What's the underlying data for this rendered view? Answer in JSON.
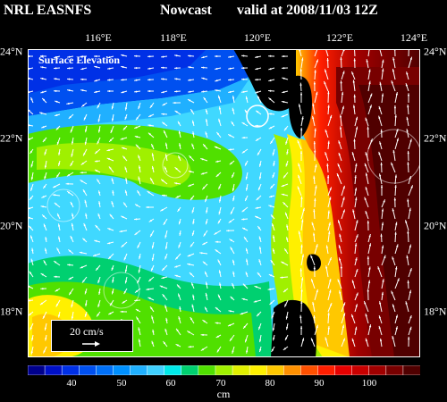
{
  "header": {
    "source": "NRL EASNFS",
    "product": "Nowcast",
    "valid": "valid at 2008/11/03 12Z"
  },
  "map": {
    "field_label": "Surface Elevation",
    "lon_ticks": [
      "116°E",
      "118°E",
      "120°E",
      "122°E",
      "124°E"
    ],
    "lat_ticks": [
      "24°N",
      "22°N",
      "20°N",
      "18°N"
    ],
    "scale_label": "20 cm/s",
    "land_color": "#000000",
    "arrow_color": "#ffffff",
    "boundary_color": "#ffffff"
  },
  "colorbar": {
    "labels": [
      "40",
      "50",
      "60",
      "70",
      "80",
      "90",
      "100"
    ],
    "unit": "cm",
    "colors": [
      "#00008c",
      "#0010c8",
      "#0030e6",
      "#0050f0",
      "#0070f8",
      "#0090ff",
      "#20b0ff",
      "#40d0ff",
      "#00e8e8",
      "#00d070",
      "#50e000",
      "#a0f000",
      "#e0f000",
      "#fff000",
      "#ffc800",
      "#ff9000",
      "#ff5000",
      "#ff1e00",
      "#e60000",
      "#c80000",
      "#a00000",
      "#780000",
      "#500000"
    ]
  }
}
